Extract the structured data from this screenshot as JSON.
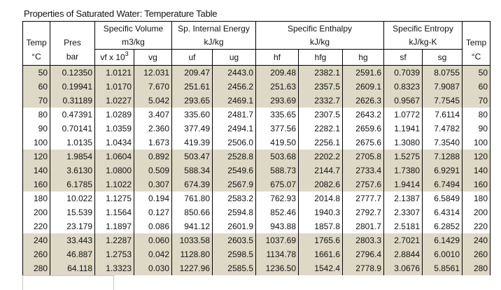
{
  "title": "Properties of Saturated Water: Temperature Table",
  "header": {
    "temp": "Temp",
    "temp_unit": "°C",
    "pres": "Pres",
    "pres_unit": "bar",
    "spec_volume": "Specific Volume",
    "spec_volume_unit": "m3/kg",
    "internal_energy": "Sp. Internal Energy",
    "internal_energy_unit": "kJ/kg",
    "enthalpy": "Specific Enthalpy",
    "enthalpy_unit": "kJ/kg",
    "entropy": "Specific Entropy",
    "entropy_unit": "kJ/kg-K",
    "vf": "vf x 10",
    "vf_exp": "3",
    "vg": "vg",
    "uf": "uf",
    "ug": "ug",
    "hf": "hf",
    "hfg": "hfg",
    "hg": "hg",
    "sf": "sf",
    "sg": "sg",
    "temp_right": "Temp",
    "temp_right_unit": "°C"
  },
  "shade_color": "#ddd9c6",
  "rows": [
    {
      "shaded": true,
      "cells": [
        "50",
        "0.12350",
        "1.0121",
        "12.031",
        "209.47",
        "2443.0",
        "209.48",
        "2382.1",
        "2591.6",
        "0.7039",
        "8.0755",
        "50"
      ]
    },
    {
      "shaded": true,
      "cells": [
        "60",
        "0.19941",
        "1.0170",
        "7.670",
        "251.61",
        "2456.2",
        "251.63",
        "2357.5",
        "2609.1",
        "0.8323",
        "7.9087",
        "60"
      ]
    },
    {
      "shaded": true,
      "cells": [
        "70",
        "0.31189",
        "1.0227",
        "5.042",
        "293.65",
        "2469.1",
        "293.69",
        "2332.7",
        "2626.3",
        "0.9567",
        "7.7545",
        "70"
      ]
    },
    {
      "shaded": false,
      "cells": [
        "80",
        "0.47391",
        "1.0289",
        "3.407",
        "335.60",
        "2481.7",
        "335.65",
        "2307.5",
        "2643.2",
        "1.0772",
        "7.6114",
        "80"
      ]
    },
    {
      "shaded": false,
      "cells": [
        "90",
        "0.70141",
        "1.0359",
        "2.360",
        "377.49",
        "2494.1",
        "377.56",
        "2282.1",
        "2659.6",
        "1.1941",
        "7.4782",
        "90"
      ]
    },
    {
      "shaded": false,
      "cells": [
        "100",
        "1.0135",
        "1.0434",
        "1.673",
        "419.39",
        "2506.0",
        "419.50",
        "2256.1",
        "2675.6",
        "1.3080",
        "7.3540",
        "100"
      ]
    },
    {
      "shaded": true,
      "cells": [
        "120",
        "1.9854",
        "1.0604",
        "0.892",
        "503.47",
        "2528.8",
        "503.68",
        "2202.2",
        "2705.8",
        "1.5275",
        "7.1288",
        "120"
      ]
    },
    {
      "shaded": true,
      "cells": [
        "140",
        "3.6130",
        "1.0800",
        "0.509",
        "588.34",
        "2549.6",
        "588.73",
        "2144.7",
        "2733.4",
        "1.7380",
        "6.9291",
        "140"
      ]
    },
    {
      "shaded": true,
      "cells": [
        "160",
        "6.1785",
        "1.1022",
        "0.307",
        "674.39",
        "2567.9",
        "675.07",
        "2082.6",
        "2757.6",
        "1.9414",
        "6.7494",
        "160"
      ]
    },
    {
      "shaded": false,
      "cells": [
        "180",
        "10.022",
        "1.1275",
        "0.194",
        "761.80",
        "2583.2",
        "762.93",
        "2014.8",
        "2777.7",
        "2.1387",
        "6.5849",
        "180"
      ]
    },
    {
      "shaded": false,
      "cells": [
        "200",
        "15.539",
        "1.1564",
        "0.127",
        "850.66",
        "2594.8",
        "852.46",
        "1940.3",
        "2792.7",
        "2.3307",
        "6.4314",
        "200"
      ]
    },
    {
      "shaded": false,
      "cells": [
        "220",
        "23.179",
        "1.1897",
        "0.086",
        "941.12",
        "2601.9",
        "943.88",
        "1857.8",
        "2801.7",
        "2.5181",
        "6.2852",
        "220"
      ]
    },
    {
      "shaded": true,
      "cells": [
        "240",
        "33.443",
        "1.2287",
        "0.060",
        "1033.58",
        "2603.5",
        "1037.69",
        "1765.6",
        "2803.3",
        "2.7021",
        "6.1429",
        "240"
      ]
    },
    {
      "shaded": true,
      "cells": [
        "260",
        "46.887",
        "1.2753",
        "0.042",
        "1128.80",
        "2598.5",
        "1134.78",
        "1661.6",
        "2796.4",
        "2.8844",
        "6.0010",
        "260"
      ]
    },
    {
      "shaded": true,
      "cells": [
        "280",
        "64.118",
        "1.3323",
        "0.030",
        "1227.96",
        "2585.5",
        "1236.50",
        "1542.4",
        "2778.9",
        "3.0676",
        "5.8561",
        "280"
      ]
    }
  ]
}
